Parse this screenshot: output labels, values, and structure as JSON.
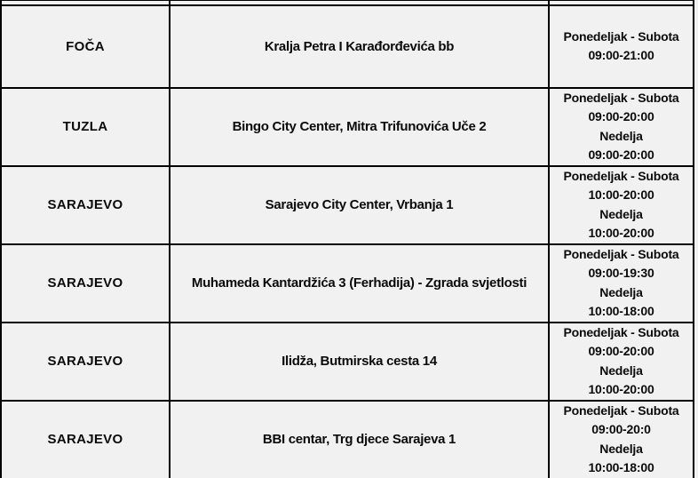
{
  "table": {
    "description": "Store locations with addresses and opening hours",
    "colors": {
      "background": "#f1f1f1",
      "border": "#000000",
      "text": "#0b0b0b"
    },
    "rows": [
      {
        "city": "FOČA",
        "address": "Kralja Petra I Karađorđevića bb",
        "hours": "Ponedeljak - Subota\n09:00-21:00"
      },
      {
        "city": "TUZLA",
        "address": "Bingo City Center, Mitra Trifunovića Uče 2",
        "hours": "Ponedeljak - Subota\n09:00-20:00\nNedelja\n09:00-20:00"
      },
      {
        "city": "SARAJEVO",
        "address": "Sarajevo City Center, Vrbanja 1",
        "hours": "Ponedeljak - Subota\n10:00-20:00\nNedelja\n10:00-20:00"
      },
      {
        "city": "SARAJEVO",
        "address": "Muhameda Kantardžića 3 (Ferhadija) - Zgrada svjetlosti",
        "hours": "Ponedeljak - Subota\n09:00-19:30\nNedelja\n10:00-18:00"
      },
      {
        "city": "SARAJEVO",
        "address": "Ilidža, Butmirska cesta 14",
        "hours": "Ponedeljak - Subota\n09:00-20:00\nNedelja\n10:00-20:00"
      },
      {
        "city": "SARAJEVO",
        "address": "BBI centar, Trg djece Sarajeva 1",
        "hours": "Ponedeljak - Subota\n09:00-20:0\nNedelja\n10:00-18:00"
      }
    ]
  }
}
